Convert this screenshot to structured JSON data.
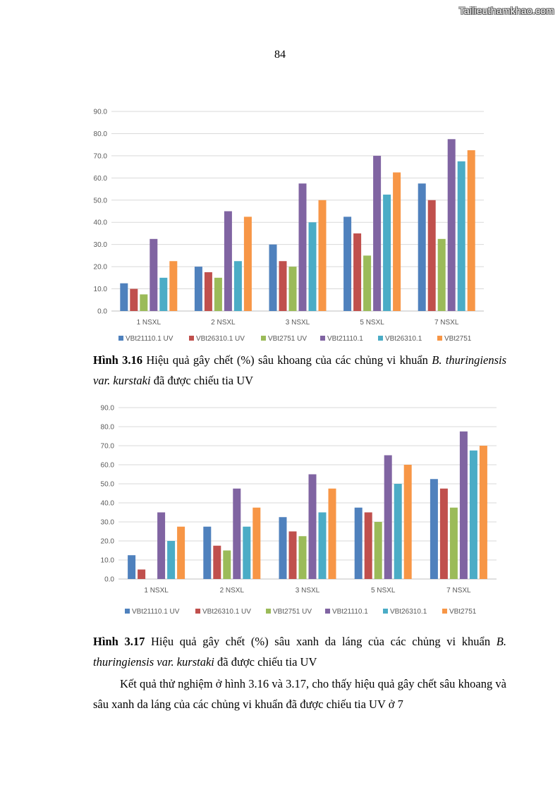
{
  "watermark": "Tailieuthamkhao.com",
  "page_number": "84",
  "chart_data": [
    {
      "type": "bar",
      "categories": [
        "1 NSXL",
        "2 NSXL",
        "3 NSXL",
        "5 NSXL",
        "7 NSXL"
      ],
      "ylim": [
        0,
        90
      ],
      "yticks": [
        "0.0",
        "10.0",
        "20.0",
        "30.0",
        "40.0",
        "50.0",
        "60.0",
        "70.0",
        "80.0",
        "90.0"
      ],
      "legend_position": "bottom",
      "series": [
        {
          "name": "VBt21110.1 UV",
          "color": "#4F81BD",
          "values": [
            12.5,
            20.0,
            30.0,
            42.5,
            57.5
          ]
        },
        {
          "name": "VBt26310.1 UV",
          "color": "#C0504D",
          "values": [
            10.0,
            17.5,
            22.5,
            35.0,
            50.0
          ]
        },
        {
          "name": "VBt2751 UV",
          "color": "#9BBB59",
          "values": [
            7.5,
            15.0,
            20.0,
            25.0,
            32.5
          ]
        },
        {
          "name": "VBt21110.1",
          "color": "#8064A2",
          "values": [
            32.5,
            45.0,
            57.5,
            70.0,
            77.5
          ]
        },
        {
          "name": "VBt26310.1",
          "color": "#4BACC6",
          "values": [
            15.0,
            22.5,
            40.0,
            52.5,
            67.5
          ]
        },
        {
          "name": "VBt2751",
          "color": "#F79646",
          "values": [
            22.5,
            42.5,
            50.0,
            62.5,
            72.5
          ]
        }
      ]
    },
    {
      "type": "bar",
      "categories": [
        "1 NSXL",
        "2 NSXL",
        "3 NSXL",
        "5 NSXL",
        "7 NSXL"
      ],
      "ylim": [
        0,
        90
      ],
      "yticks": [
        "0.0",
        "10.0",
        "20.0",
        "30.0",
        "40.0",
        "50.0",
        "60.0",
        "70.0",
        "80.0",
        "90.0"
      ],
      "legend_position": "bottom",
      "series": [
        {
          "name": "VBt21110.1 UV",
          "color": "#4F81BD",
          "values": [
            12.5,
            27.5,
            32.5,
            37.5,
            52.5
          ]
        },
        {
          "name": "VBt26310.1 UV",
          "color": "#C0504D",
          "values": [
            5.0,
            17.5,
            25.0,
            35.0,
            47.5
          ]
        },
        {
          "name": "VBt2751 UV",
          "color": "#9BBB59",
          "values": [
            0.0,
            15.0,
            22.5,
            30.0,
            37.5
          ]
        },
        {
          "name": "VBt21110.1",
          "color": "#8064A2",
          "values": [
            35.0,
            47.5,
            55.0,
            65.0,
            77.5
          ]
        },
        {
          "name": "VBt26310.1",
          "color": "#4BACC6",
          "values": [
            20.0,
            27.5,
            35.0,
            50.0,
            67.5
          ]
        },
        {
          "name": "VBt2751",
          "color": "#F79646",
          "values": [
            27.5,
            37.5,
            47.5,
            60.0,
            70.0
          ]
        }
      ]
    }
  ],
  "caption1": {
    "label": "Hình 3.16",
    "text_a": " Hiệu quả gây chết (%) sâu khoang của các chủng vi khuẩn ",
    "species_a": "B.",
    "species_b": "thuringiensis var. kurstaki",
    "text_b": " đã được chiếu tia UV"
  },
  "caption2": {
    "label": "Hình 3.17",
    "text_a": " Hiệu quả gây chết (%) sâu xanh da láng của các chủng vi khuẩn ",
    "species_a": "B.",
    "species_b": "thuringiensis var. kurstaki",
    "text_b": " đã được chiếu tia UV"
  },
  "paragraph": "Kết quả thử nghiệm ở hình 3.16 và 3.17, cho thấy hiệu quả gây chết sâu khoang và sâu xanh da láng của các chủng vi khuẩn đã được chiếu tia UV ở 7"
}
